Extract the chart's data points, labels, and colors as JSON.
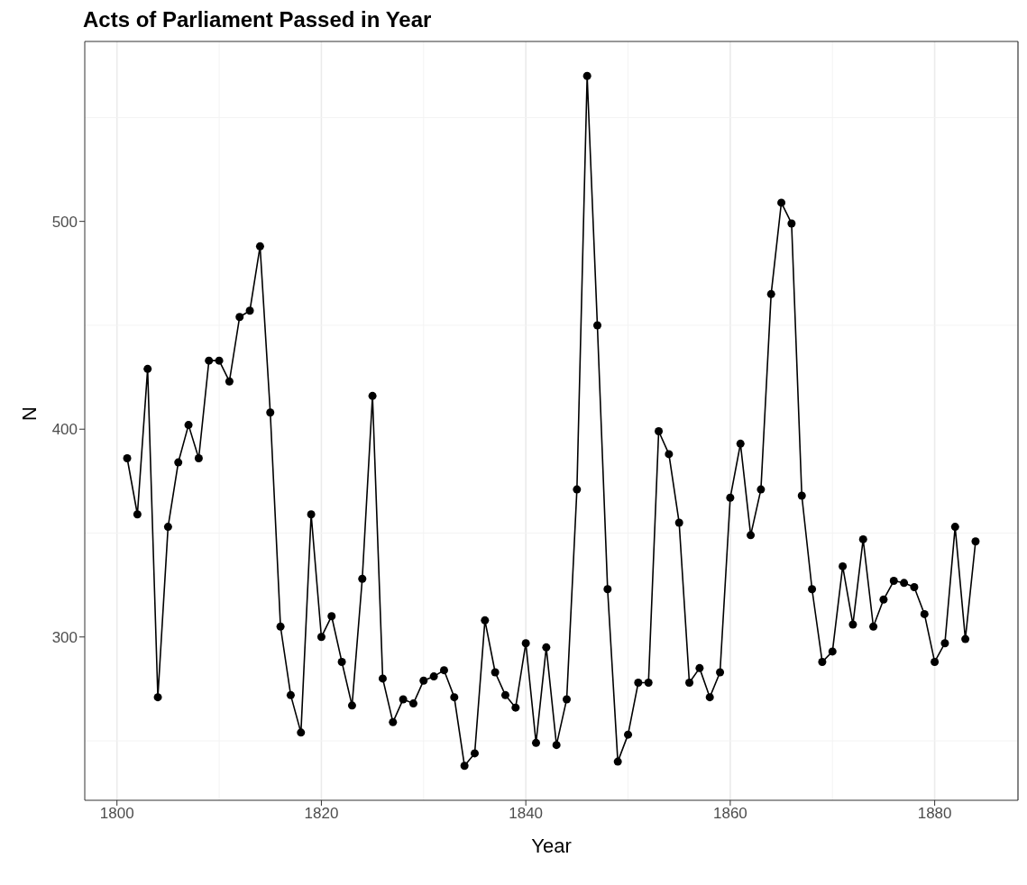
{
  "chart_data": {
    "type": "line",
    "title": "Acts of Parliament Passed in Year",
    "xlabel": "Year",
    "ylabel": "N",
    "x": [
      1801,
      1802,
      1803,
      1804,
      1805,
      1806,
      1807,
      1808,
      1809,
      1810,
      1811,
      1812,
      1813,
      1814,
      1815,
      1816,
      1817,
      1818,
      1819,
      1820,
      1821,
      1822,
      1823,
      1824,
      1825,
      1826,
      1827,
      1828,
      1829,
      1830,
      1831,
      1832,
      1833,
      1834,
      1835,
      1836,
      1837,
      1838,
      1839,
      1840,
      1841,
      1842,
      1843,
      1844,
      1845,
      1846,
      1847,
      1848,
      1849,
      1850,
      1851,
      1852,
      1853,
      1854,
      1855,
      1856,
      1857,
      1858,
      1859,
      1860,
      1861,
      1862,
      1863,
      1864,
      1865,
      1866,
      1867,
      1868,
      1869,
      1870,
      1871,
      1872,
      1873,
      1874,
      1875,
      1876,
      1877,
      1878,
      1879,
      1880,
      1881,
      1882,
      1883,
      1884
    ],
    "series": [
      {
        "color": "#000000",
        "values": [
          386,
          359,
          429,
          271,
          353,
          384,
          402,
          386,
          433,
          433,
          423,
          454,
          457,
          488,
          408,
          305,
          272,
          254,
          359,
          300,
          310,
          288,
          267,
          328,
          416,
          280,
          259,
          270,
          268,
          279,
          281,
          284,
          271,
          238,
          244,
          308,
          283,
          272,
          266,
          297,
          249,
          295,
          248,
          270,
          371,
          570,
          450,
          323,
          240,
          253,
          278,
          278,
          399,
          388,
          355,
          278,
          285,
          271,
          283,
          367,
          393,
          349,
          371,
          465,
          509,
          499,
          368,
          323,
          288,
          293,
          334,
          306,
          347,
          305,
          318,
          327,
          326,
          324,
          311,
          288,
          297,
          353,
          299,
          346
        ]
      }
    ],
    "xlim": [
      1796.85,
      1888.15
    ],
    "xticks": [
      1800,
      1820,
      1840,
      1860,
      1880
    ],
    "ylim": [
      221.4,
      586.6
    ],
    "yticks": [
      300,
      400,
      500
    ],
    "grid": true,
    "marker": "circle",
    "line_style": "solid",
    "legend": false
  }
}
